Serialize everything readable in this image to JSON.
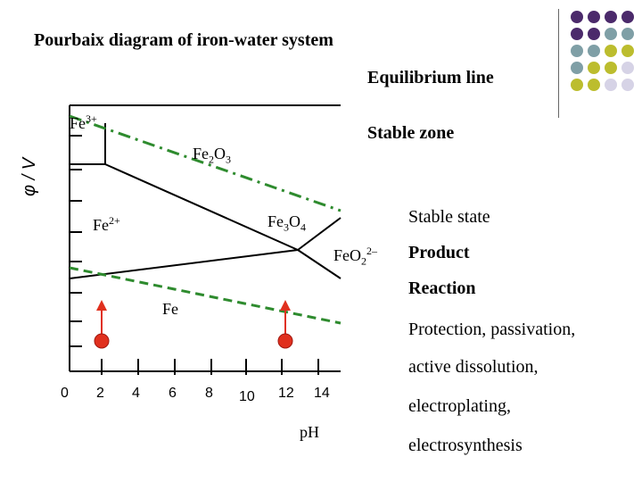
{
  "title": "Pourbaix diagram of iron-water system",
  "legend": {
    "equilibrium_line": "Equilibrium line",
    "stable_zone": "Stable zone"
  },
  "axes": {
    "y_label": "φ / V",
    "x_label": "pH",
    "x_ticks": [
      "0",
      "2",
      "4",
      "6",
      "8",
      "10",
      "12",
      "14"
    ]
  },
  "regions": {
    "fe3": {
      "base": "Fe",
      "sup": "3+"
    },
    "fe2o3": {
      "base": "Fe",
      "sub1": "2",
      "mid": "O",
      "sub2": "3"
    },
    "fe2": {
      "base": "Fe",
      "sup": "2+"
    },
    "fe3o4": {
      "base": "Fe",
      "sub1": "3",
      "mid": "O",
      "sub2": "4"
    },
    "feo2": {
      "base": "FeO",
      "sub": "2",
      "sup": "2–"
    },
    "fe": "Fe"
  },
  "sidebar": {
    "stable_state": "Stable state",
    "product": "Product",
    "reaction": "Reaction",
    "lines": [
      "Protection, passivation,",
      "active dissolution,",
      "electroplating,",
      "electrosynthesis"
    ]
  },
  "colors": {
    "purple": "#4b2a6b",
    "teal": "#7f9fa6",
    "olive": "#bcbd2e",
    "lavender": "#d6d3e6",
    "dash_green": "#2e8b2e",
    "arrow_red": "#e0301e"
  },
  "decoration": {
    "rows": [
      [
        "purple",
        "purple",
        "purple",
        "purple"
      ],
      [
        "purple",
        "purple",
        "teal",
        "teal"
      ],
      [
        "teal",
        "teal",
        "olive",
        "olive"
      ],
      [
        "teal",
        "olive",
        "olive",
        "lavender"
      ],
      [
        "olive",
        "olive",
        "lavender",
        "lavender"
      ]
    ]
  }
}
